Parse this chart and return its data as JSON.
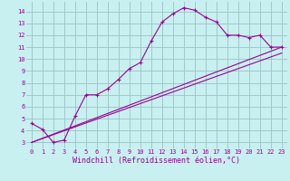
{
  "xlabel": "Windchill (Refroidissement éolien,°C)",
  "bg_color": "#c8f0f0",
  "grid_color": "#a0c8c8",
  "line_color": "#990099",
  "xlim": [
    -0.5,
    23.5
  ],
  "ylim": [
    2.5,
    14.8
  ],
  "xticks": [
    0,
    1,
    2,
    3,
    4,
    5,
    6,
    7,
    8,
    9,
    10,
    11,
    12,
    13,
    14,
    15,
    16,
    17,
    18,
    19,
    20,
    21,
    22,
    23
  ],
  "yticks": [
    3,
    4,
    5,
    6,
    7,
    8,
    9,
    10,
    11,
    12,
    13,
    14
  ],
  "main_x": [
    0,
    1,
    2,
    3,
    4,
    5,
    6,
    7,
    8,
    9,
    10,
    11,
    12,
    13,
    14,
    15,
    16,
    17,
    18,
    19,
    20,
    21,
    22,
    23
  ],
  "main_y": [
    4.6,
    4.1,
    3.0,
    3.2,
    5.2,
    7.0,
    7.0,
    7.5,
    8.3,
    9.2,
    9.7,
    11.5,
    13.1,
    13.8,
    14.3,
    14.1,
    13.5,
    13.1,
    12.0,
    12.0,
    11.8,
    12.0,
    11.0,
    11.0
  ],
  "line2_x": [
    0,
    23
  ],
  "line2_y": [
    3.0,
    10.5
  ],
  "line3_x": [
    0,
    23
  ],
  "line3_y": [
    3.0,
    11.0
  ],
  "font_size_label": 6,
  "font_size_tick": 5,
  "tick_font": "monospace"
}
